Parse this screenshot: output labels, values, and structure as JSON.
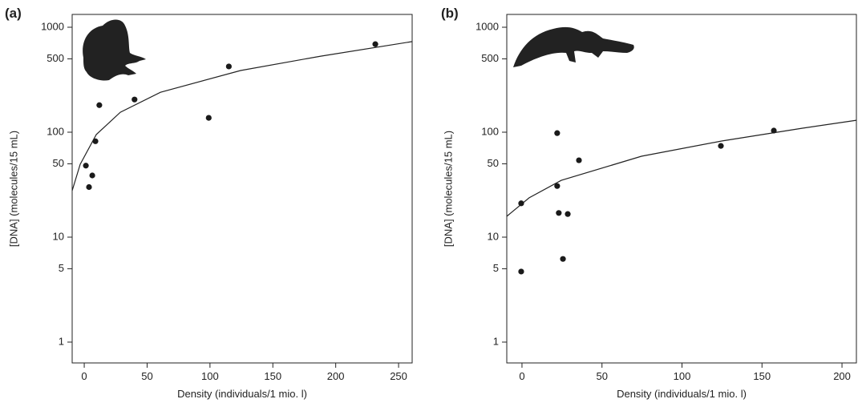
{
  "chart_data": [
    {
      "type": "scatter",
      "title": "(a)",
      "x_label": "Density (individuals/1 mio. l)",
      "y_label": "[DNA] (molecules/15 mL)",
      "log_y": true,
      "color": "#1a1a1a",
      "x": [
        1.3,
        3.8,
        6.4,
        8.9,
        12,
        40,
        99,
        115,
        231.5
      ],
      "values": [
        48,
        30,
        38.7,
        82,
        181,
        205,
        137,
        423,
        690
      ],
      "fit": {
        "x": [
          -9.6,
          -3.2,
          9.6,
          28.7,
          60.6,
          124.4,
          188.1,
          260.8
        ],
        "values": [
          27.7,
          49.4,
          95,
          155,
          240,
          387,
          530,
          730
        ]
      },
      "xlim": [
        -9.6,
        260.8
      ],
      "ylim": [
        0.633,
        1325
      ],
      "xticks": [
        0,
        50,
        100,
        150,
        200,
        250
      ],
      "yticks": [
        1,
        5,
        10,
        50,
        100,
        500,
        1000
      ]
    },
    {
      "type": "scatter",
      "title": "(b)",
      "x_label": "Density (individuals/1 mio. l)",
      "y_label": "[DNA] (molecules/15 mL)",
      "log_y": true,
      "color": "#1a1a1a",
      "x": [
        -0.5,
        -0.5,
        22,
        22,
        23,
        28.6,
        25.6,
        35.6,
        124.3,
        157.4
      ],
      "values": [
        21,
        4.7,
        98,
        30.7,
        17,
        16.6,
        6.2,
        54,
        74,
        103.6
      ],
      "fit": {
        "x": [
          -9.5,
          4.5,
          24.6,
          74.7,
          124.8,
          174.9,
          209
        ],
        "values": [
          15.8,
          23.7,
          34.8,
          59,
          82.4,
          109,
          130
        ]
      },
      "xlim": [
        -9.5,
        209
      ],
      "ylim": [
        0.633,
        1325
      ],
      "xticks": [
        0,
        50,
        100,
        150,
        200
      ],
      "yticks": [
        1,
        5,
        10,
        50,
        100,
        500,
        1000
      ]
    }
  ]
}
